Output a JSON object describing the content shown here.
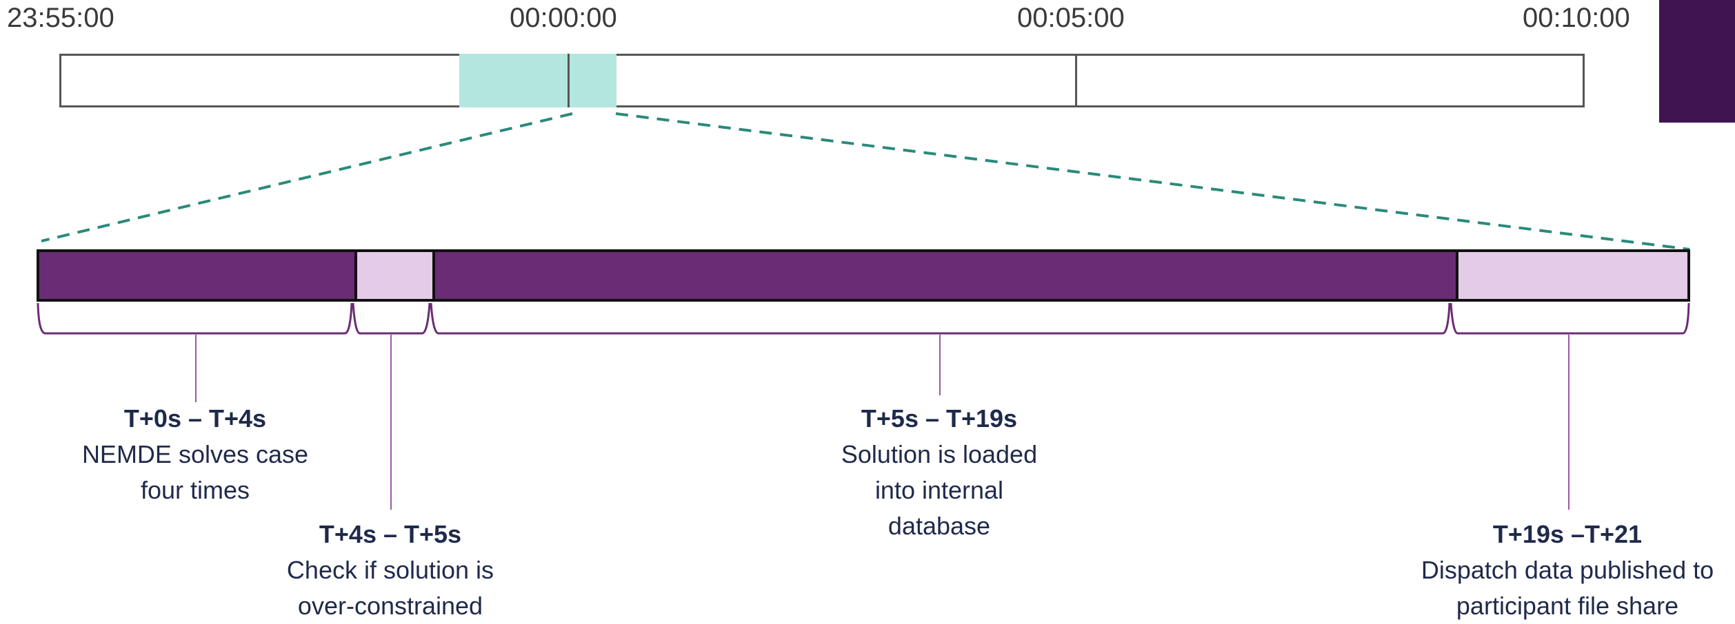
{
  "top_timeline": {
    "ticks": [
      {
        "label": "23:55:00"
      },
      {
        "label": "00:00:00"
      },
      {
        "label": "00:05:00"
      },
      {
        "label": "00:10:00"
      }
    ]
  },
  "segments": [
    {
      "time": "T+0s – T+4s",
      "desc_line1": "NEMDE solves case",
      "desc_line2": "four times",
      "desc_line3": ""
    },
    {
      "time": "T+4s – T+5s",
      "desc_line1": "Check if solution is",
      "desc_line2": "over-constrained",
      "desc_line3": ""
    },
    {
      "time": "T+5s – T+19s",
      "desc_line1": "Solution is loaded",
      "desc_line2": "into internal",
      "desc_line3": "database"
    },
    {
      "time": "T+19s –T+21",
      "desc_line1": "Dispatch data published to",
      "desc_line2": "participant file share",
      "desc_line3": ""
    }
  ],
  "colors": {
    "dark_segment": "#6a2c74",
    "light_segment": "#e4cce9",
    "window_highlight": "#b3e6df",
    "zoom_lines": "#2a8a7a",
    "text": "#1f2a4a"
  }
}
